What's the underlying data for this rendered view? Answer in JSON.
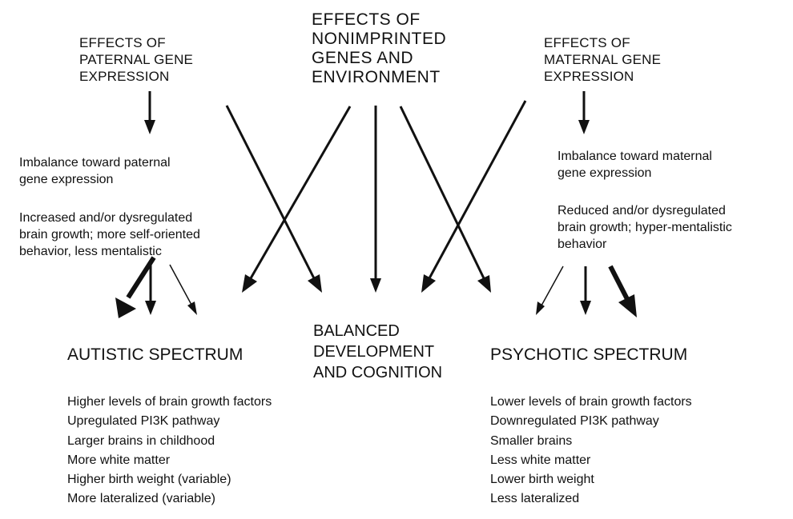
{
  "headers": {
    "paternal": "EFFECTS OF\nPATERNAL GENE\nEXPRESSION",
    "nonimprinted": "EFFECTS OF\nNONIMPRINTED\nGENES AND\nENVIRONMENT",
    "maternal": "EFFECTS OF\nMATERNAL GENE\nEXPRESSION"
  },
  "paternal_side": {
    "imbalance": "Imbalance toward paternal\ngene expression",
    "effects": "Increased  and/or dysregulated\nbrain growth; more self-oriented\nbehavior, less mentalistic"
  },
  "maternal_side": {
    "imbalance": "Imbalance toward maternal\ngene expression",
    "effects": "Reduced and/or dysregulated\nbrain growth; hyper-mentalistic\nbehavior"
  },
  "outcomes": {
    "autistic": "AUTISTIC SPECTRUM",
    "balanced": "BALANCED\nDEVELOPMENT\nAND COGNITION",
    "psychotic": "PSYCHOTIC SPECTRUM"
  },
  "autistic_traits": [
    "Higher levels of brain growth factors",
    "Upregulated PI3K pathway",
    "Larger brains in childhood",
    "More white matter",
    "Higher birth weight  (variable)",
    "More lateralized (variable)"
  ],
  "psychotic_traits": [
    "Lower levels of brain growth factors",
    "Downregulated PI3K pathway",
    "Smaller brains",
    "Less white matter",
    "Lower birth weight",
    "Less lateralized"
  ],
  "colors": {
    "ink": "#111111",
    "background": "#ffffff"
  }
}
